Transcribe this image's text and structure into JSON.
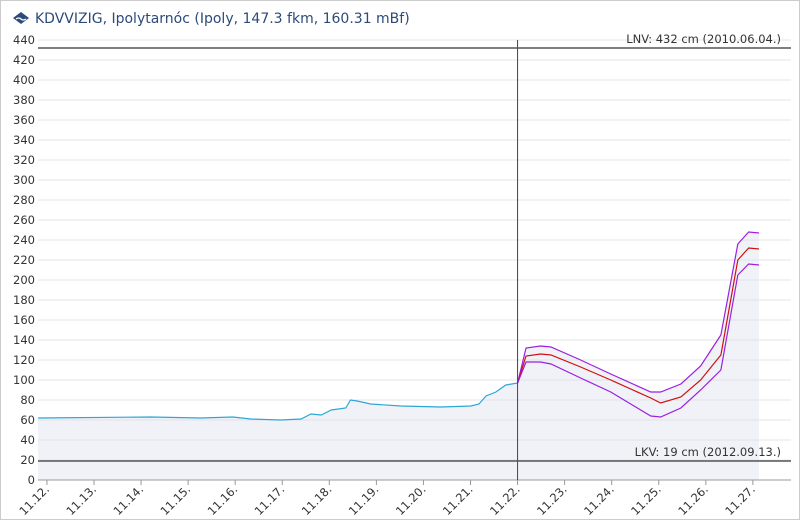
{
  "chart_data": {
    "type": "line",
    "title": "KDVVIZIG, Ipolytarnóc (Ipoly, 147.3 fkm, 160.31 mBf)",
    "xlim": [
      11.81,
      27.81
    ],
    "ylim": [
      0,
      440
    ],
    "xticks": [
      {
        "value": 12,
        "label": "11.12."
      },
      {
        "value": 13,
        "label": "11.13."
      },
      {
        "value": 14,
        "label": "11.14."
      },
      {
        "value": 15,
        "label": "11.15."
      },
      {
        "value": 16,
        "label": "11.16."
      },
      {
        "value": 17,
        "label": "11.17."
      },
      {
        "value": 18,
        "label": "11.18."
      },
      {
        "value": 19,
        "label": "11.19."
      },
      {
        "value": 20,
        "label": "11.20."
      },
      {
        "value": 21,
        "label": "11.21."
      },
      {
        "value": 22,
        "label": "11.22."
      },
      {
        "value": 23,
        "label": "11.23."
      },
      {
        "value": 24,
        "label": "11.24."
      },
      {
        "value": 25,
        "label": "11.25."
      },
      {
        "value": 26,
        "label": "11.26."
      },
      {
        "value": 27,
        "label": "11.27."
      }
    ],
    "yticks": [
      0,
      20,
      40,
      60,
      80,
      100,
      120,
      140,
      160,
      180,
      200,
      220,
      240,
      260,
      280,
      300,
      320,
      340,
      360,
      380,
      400,
      420,
      440
    ],
    "grid": true,
    "vlines": [
      22
    ],
    "reference_lines": [
      {
        "value": 432,
        "label": "LNV: 432 cm (2010.06.04.)"
      },
      {
        "value": 19,
        "label": "LKV: 19 cm (2012.09.13.)"
      }
    ],
    "series": [
      {
        "color": "#2ea6d6",
        "area": true,
        "x": [
          11.81,
          14.21,
          15.27,
          15.95,
          16.33,
          16.97,
          17.4,
          17.61,
          17.83,
          18.04,
          18.35,
          18.45,
          18.59,
          18.88,
          19.52,
          20.37,
          21.01,
          21.18,
          21.33,
          21.54,
          21.75,
          22.0
        ],
        "values": [
          62,
          63,
          62,
          63,
          61,
          60,
          61,
          66,
          65,
          70,
          72,
          80,
          79,
          76,
          74,
          73,
          74,
          76,
          84,
          88,
          95,
          97
        ]
      },
      {
        "color": "#9b1fe0",
        "area": true,
        "x": [
          22.0,
          22.18,
          22.49,
          22.71,
          23.34,
          23.98,
          24.83,
          25.04,
          25.47,
          25.89,
          26.32,
          26.68,
          26.91,
          27.13
        ],
        "values": [
          97,
          132,
          134,
          133,
          120,
          106,
          88,
          88,
          96,
          114,
          145,
          236,
          248,
          247
        ]
      },
      {
        "color": "#d01010",
        "area": false,
        "x": [
          22.0,
          22.18,
          22.49,
          22.71,
          23.34,
          23.98,
          24.83,
          25.04,
          25.47,
          25.89,
          26.32,
          26.68,
          26.91,
          27.13
        ],
        "values": [
          97,
          124,
          126,
          125,
          113,
          100,
          82,
          77,
          83,
          100,
          125,
          220,
          232,
          231
        ]
      },
      {
        "color": "#9b1fe0",
        "area": false,
        "x": [
          22.0,
          22.18,
          22.49,
          22.71,
          23.34,
          23.98,
          24.83,
          25.04,
          25.47,
          25.89,
          26.32,
          26.68,
          26.91,
          27.13
        ],
        "values": [
          97,
          118,
          118,
          116,
          102,
          88,
          64,
          63,
          72,
          90,
          110,
          205,
          216,
          215
        ]
      }
    ]
  }
}
